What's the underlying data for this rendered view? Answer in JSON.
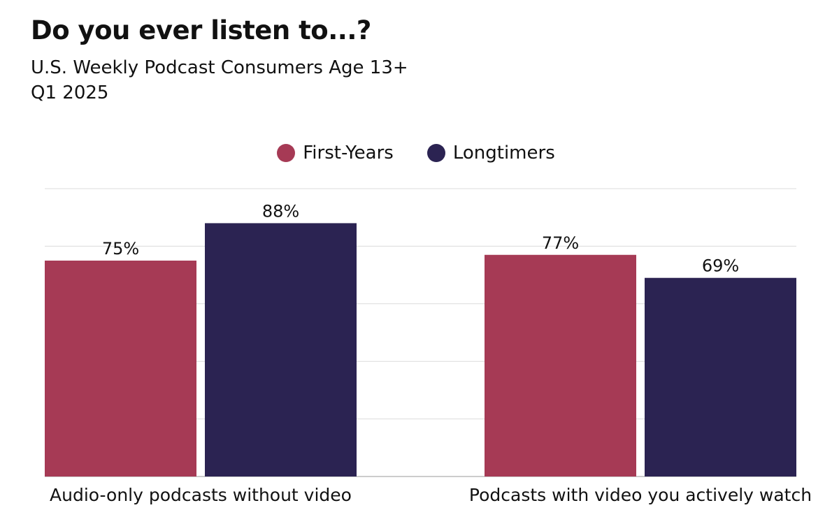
{
  "chart_data": {
    "type": "bar",
    "title": "Do you ever listen to...?",
    "subtitle": [
      "U.S. Weekly Podcast Consumers Age 13+",
      "Q1 2025"
    ],
    "categories": [
      "Audio-only podcasts without video",
      "Podcasts with video you actively watch"
    ],
    "series": [
      {
        "name": "First-Years",
        "values": [
          75,
          77
        ],
        "labels": [
          "75%",
          "77%"
        ],
        "color": "#a63a55"
      },
      {
        "name": "Longtimers",
        "values": [
          88,
          69
        ],
        "labels": [
          "88%",
          "69%"
        ],
        "color": "#2b2352"
      }
    ],
    "ylim": [
      0,
      100
    ],
    "yticks": [
      0,
      20,
      40,
      60,
      80,
      100
    ],
    "grid": true,
    "legend": "top-center",
    "xlabel": "",
    "ylabel": ""
  }
}
